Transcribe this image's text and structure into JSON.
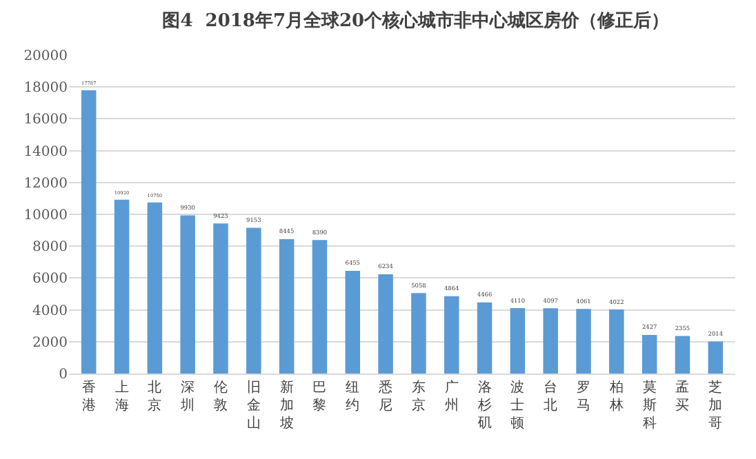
{
  "chart_data": {
    "type": "bar",
    "title": "图4  2018年7月全球20个核心城市非中心城区房价（修正后）",
    "categories": [
      "香港",
      "上海",
      "北京",
      "深圳",
      "伦敦",
      "旧金山",
      "新加坡",
      "巴黎",
      "纽约",
      "悉尼",
      "东京",
      "广州",
      "洛杉矶",
      "波士顿",
      "台北",
      "罗马",
      "柏林",
      "莫斯科",
      "孟买",
      "芝加哥"
    ],
    "values": [
      17787,
      10920,
      10750,
      9930,
      9423,
      9153,
      8445,
      8390,
      6455,
      6234,
      5058,
      4864,
      4466,
      4110,
      4097,
      4061,
      4022,
      2427,
      2355,
      2014
    ],
    "color": "#5b9bd5",
    "ylim": [
      0,
      20000
    ],
    "yticks": [
      0,
      2000,
      4000,
      6000,
      8000,
      10000,
      12000,
      14000,
      16000,
      18000,
      20000
    ],
    "grid": "y",
    "data_labels": true
  }
}
